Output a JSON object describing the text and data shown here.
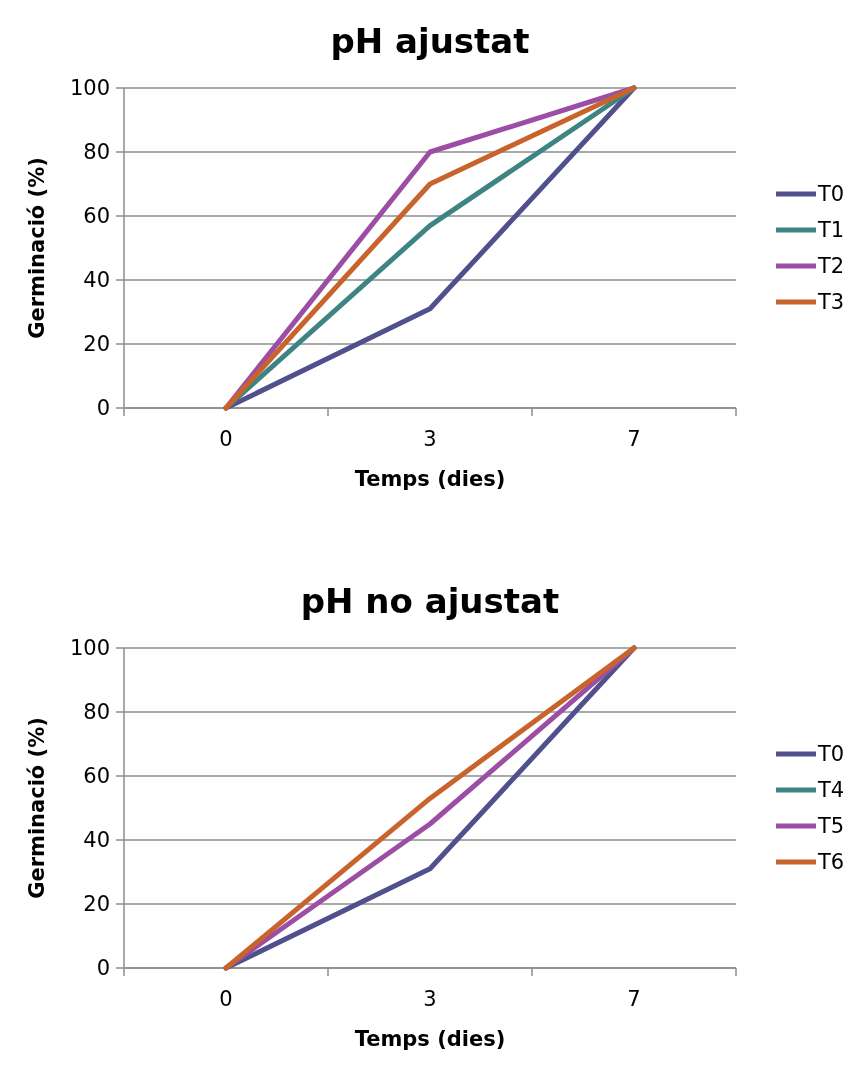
{
  "chart_data": [
    {
      "type": "line",
      "title": "pH ajustat",
      "xlabel": "Temps (dies)",
      "ylabel": "Germinació (%)",
      "categories": [
        "0",
        "3",
        "7"
      ],
      "ylim": [
        0,
        100
      ],
      "yticks": [
        0,
        20,
        40,
        60,
        80,
        100
      ],
      "grid": "y",
      "legend": "right",
      "series": [
        {
          "name": "T0",
          "color": "#50518c",
          "values": [
            0,
            31,
            100
          ]
        },
        {
          "name": "T1",
          "color": "#3f8484",
          "values": [
            0,
            57,
            100
          ]
        },
        {
          "name": "T2",
          "color": "#9b4ea3",
          "values": [
            0,
            80,
            100
          ]
        },
        {
          "name": "T3",
          "color": "#c8642b",
          "values": [
            0,
            70,
            100
          ]
        }
      ]
    },
    {
      "type": "line",
      "title": "pH no ajustat",
      "xlabel": "Temps (dies)",
      "ylabel": "Germinació (%)",
      "categories": [
        "0",
        "3",
        "7"
      ],
      "ylim": [
        0,
        100
      ],
      "yticks": [
        0,
        20,
        40,
        60,
        80,
        100
      ],
      "grid": "y",
      "legend": "right",
      "series": [
        {
          "name": "T0",
          "color": "#50518c",
          "values": [
            0,
            31,
            100
          ]
        },
        {
          "name": "T4",
          "color": "#3f8484",
          "values": [
            null,
            null,
            null
          ]
        },
        {
          "name": "T5",
          "color": "#9b4ea3",
          "values": [
            0,
            45,
            100
          ]
        },
        {
          "name": "T6",
          "color": "#c8642b",
          "values": [
            0,
            53,
            100
          ]
        }
      ]
    }
  ]
}
